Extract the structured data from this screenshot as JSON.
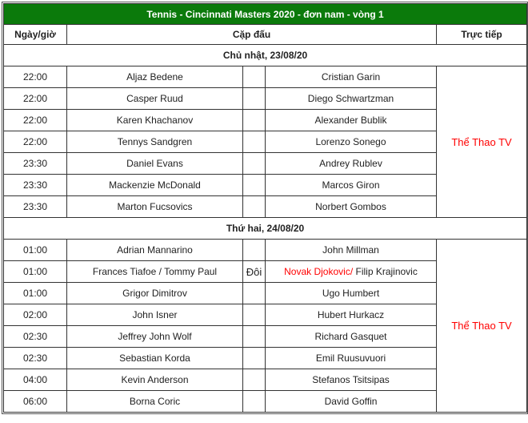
{
  "title": "Tennis - Cincinnati Masters 2020 - đơn nam - vòng 1",
  "headers": {
    "time": "Ngày/giờ",
    "match": "Cặp đấu",
    "live": "Trực tiếp"
  },
  "colors": {
    "header_bg": "#0b7a0b",
    "highlight": "#ff0000"
  },
  "days": [
    {
      "label": "Chủ nhật, 23/08/20",
      "channel": "Thể Thao TV",
      "matches": [
        {
          "time": "22:00",
          "p1": "Aljaz Bedene",
          "mid": "",
          "p2": "Cristian Garin"
        },
        {
          "time": "22:00",
          "p1": "Casper Ruud",
          "mid": "",
          "p2": "Diego Schwartzman"
        },
        {
          "time": "22:00",
          "p1": "Karen Khachanov",
          "mid": "",
          "p2": "Alexander Bublik"
        },
        {
          "time": "22:00",
          "p1": "Tennys Sandgren",
          "mid": "",
          "p2": "Lorenzo Sonego"
        },
        {
          "time": "23:30",
          "p1": "Daniel Evans",
          "mid": "",
          "p2": "Andrey Rublev"
        },
        {
          "time": "23:30",
          "p1": "Mackenzie McDonald",
          "mid": "",
          "p2": "Marcos Giron"
        },
        {
          "time": "23:30",
          "p1": "Marton Fucsovics",
          "mid": "",
          "p2": "Norbert Gombos"
        }
      ]
    },
    {
      "label": "Thứ hai, 24/08/20",
      "channel": "Thể Thao TV",
      "matches": [
        {
          "time": "01:00",
          "p1": "Adrian Mannarino",
          "mid": "",
          "p2": "John Millman"
        },
        {
          "time": "01:00",
          "p1": "Frances Tiafoe / Tommy Paul",
          "mid": "Đôi",
          "p2_red": "Novak Djokovic/",
          "p2": " Filip Krajinovic"
        },
        {
          "time": "01:00",
          "p1": "Grigor Dimitrov",
          "mid": "",
          "p2": "Ugo Humbert"
        },
        {
          "time": "02:00",
          "p1": "John Isner",
          "mid": "",
          "p2": "Hubert Hurkacz"
        },
        {
          "time": "02:30",
          "p1": "Jeffrey John Wolf",
          "mid": "",
          "p2": "Richard Gasquet"
        },
        {
          "time": "02:30",
          "p1": "Sebastian Korda",
          "mid": "",
          "p2": "Emil Ruusuvuori"
        },
        {
          "time": "04:00",
          "p1": "Kevin Anderson",
          "mid": "",
          "p2": "Stefanos Tsitsipas"
        },
        {
          "time": "06:00",
          "p1": "Borna Coric",
          "mid": "",
          "p2": "David Goffin"
        }
      ]
    }
  ]
}
